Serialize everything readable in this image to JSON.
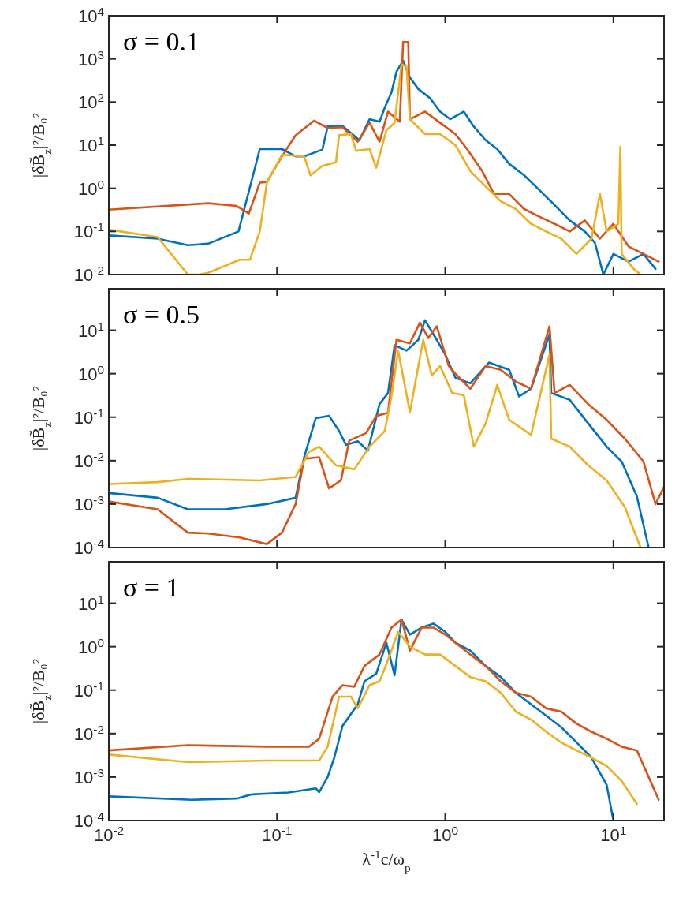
{
  "chart_data": [
    {
      "type": "line",
      "log": "xy",
      "ylabel": "|δB̃$_{z}$|²/B₀²",
      "annotations": [
        "σ = 0.1"
      ],
      "tick_labels": "y",
      "xlim": [
        0.01,
        20
      ],
      "ylim": [
        0.01,
        10000
      ],
      "xticks": [
        {
          "value": 0.01,
          "label": null
        },
        {
          "value": 0.1,
          "label": null
        },
        {
          "value": 1,
          "label": null
        },
        {
          "value": 10,
          "label": null
        }
      ],
      "yticks": [
        {
          "value": 0.01,
          "label": "10$^{-2}$"
        },
        {
          "value": 0.1,
          "label": "10$^{-1}$"
        },
        {
          "value": 1,
          "label": "10$^{0}$"
        },
        {
          "value": 10,
          "label": "10$^{1}$"
        },
        {
          "value": 100,
          "label": "10$^{2}$"
        },
        {
          "value": 1000,
          "label": "10$^{3}$"
        },
        {
          "value": 10000,
          "label": "10$^{4}$"
        }
      ],
      "series": [
        {
          "color": "#0072bd",
          "x": [
            0.01,
            0.0195,
            0.0295,
            0.039,
            0.059,
            0.079,
            0.107,
            0.129,
            0.145,
            0.186,
            0.2,
            0.245,
            0.309,
            0.355,
            0.407,
            0.437,
            0.479,
            0.513,
            0.562,
            0.617,
            0.692,
            0.813,
            0.933,
            1.07,
            1.29,
            1.48,
            1.74,
            2.04,
            2.4,
            2.95,
            3.63,
            4.47,
            5.5,
            6.76,
            7.76,
            8.71,
            10,
            12.3,
            15.1,
            17.8
          ],
          "values": [
            0.081,
            0.068,
            0.048,
            0.052,
            0.1,
            8.1,
            8.1,
            5.5,
            5.5,
            7.9,
            27,
            28,
            13,
            40,
            35,
            74,
            166,
            500,
            912,
            372,
            200,
            123,
            60,
            40,
            60,
            27,
            13,
            8.1,
            3.7,
            2.0,
            0.91,
            0.41,
            0.18,
            0.1,
            0.055,
            0.01,
            0.03,
            0.02,
            0.03,
            0.0135
          ]
        },
        {
          "color": "#d95319",
          "x": [
            0.01,
            0.039,
            0.0575,
            0.068,
            0.079,
            0.087,
            0.107,
            0.129,
            0.166,
            0.2,
            0.245,
            0.302,
            0.355,
            0.407,
            0.457,
            0.537,
            0.562,
            0.603,
            0.617,
            0.759,
            0.933,
            1.15,
            1.35,
            1.66,
            1.95,
            2.4,
            2.95,
            3.63,
            4.47,
            5.5,
            6.76,
            8.32,
            10,
            12.3,
            15.1,
            18.6
          ],
          "values": [
            0.32,
            0.45,
            0.39,
            0.26,
            1.35,
            1.4,
            5.5,
            17,
            37,
            25,
            26,
            12,
            33,
            12,
            60,
            35,
            2450,
            2450,
            40,
            60,
            33,
            18,
            8.1,
            2.5,
            0.74,
            0.74,
            0.33,
            0.22,
            0.15,
            0.1,
            0.18,
            0.068,
            0.15,
            0.045,
            0.03,
            0.02
          ]
        },
        {
          "color": "#edb120",
          "x": [
            0.01,
            0.0195,
            0.0295,
            0.0347,
            0.039,
            0.06,
            0.069,
            0.079,
            0.087,
            0.107,
            0.145,
            0.158,
            0.186,
            0.224,
            0.234,
            0.275,
            0.295,
            0.355,
            0.389,
            0.447,
            0.5,
            0.55,
            0.589,
            0.617,
            0.759,
            0.933,
            1.15,
            1.41,
            1.74,
            2.14,
            2.63,
            3.24,
            3.98,
            4.9,
            6.03,
            7.41,
            8.32,
            9.12,
            10.7,
            11,
            11.2,
            13.2,
            14.5
          ],
          "values": [
            0.11,
            0.074,
            0.01,
            0.01,
            0.011,
            0.022,
            0.022,
            0.1,
            1.35,
            6.0,
            5.5,
            2.0,
            3.3,
            4.0,
            17,
            18,
            7.4,
            8.1,
            3.0,
            22,
            33,
            740,
            660,
            40,
            18,
            18,
            10,
            2.5,
            1.1,
            0.5,
            0.33,
            0.15,
            0.1,
            0.068,
            0.03,
            0.068,
            0.74,
            0.1,
            0.15,
            9.1,
            0.03,
            0.0135,
            0.01
          ]
        }
      ]
    },
    {
      "type": "line",
      "log": "xy",
      "ylabel": "|δB̃$_{z}$|²/B₀²",
      "annotations": [
        "σ = 0.5"
      ],
      "tick_labels": "y",
      "xlim": [
        0.01,
        20
      ],
      "ylim": [
        0.0001,
        90
      ],
      "xticks": [
        {
          "value": 0.01,
          "label": null
        },
        {
          "value": 0.1,
          "label": null
        },
        {
          "value": 1,
          "label": null
        },
        {
          "value": 10,
          "label": null
        }
      ],
      "yticks": [
        {
          "value": 0.0001,
          "label": "10$^{-4}$"
        },
        {
          "value": 0.001,
          "label": "10$^{-3}$"
        },
        {
          "value": 0.01,
          "label": "10$^{-2}$"
        },
        {
          "value": 0.1,
          "label": "10$^{-1}$"
        },
        {
          "value": 1,
          "label": "10$^{0}$"
        },
        {
          "value": 10,
          "label": "10$^{1}$"
        }
      ],
      "series": [
        {
          "color": "#0072bd",
          "x": [
            0.01,
            0.0195,
            0.0295,
            0.049,
            0.087,
            0.129,
            0.145,
            0.17,
            0.204,
            0.234,
            0.257,
            0.302,
            0.347,
            0.407,
            0.457,
            0.5,
            0.589,
            0.692,
            0.759,
            0.891,
            1,
            1.15,
            1.41,
            1.82,
            2.4,
            2.75,
            3.24,
            4.17,
            4.27,
            5.5,
            7.08,
            9.12,
            11.2,
            13.8,
            16.2
          ],
          "values": [
            0.0018,
            0.0014,
            0.00076,
            0.00076,
            0.001,
            0.0014,
            0.012,
            0.095,
            0.107,
            0.048,
            0.023,
            0.028,
            0.017,
            0.2,
            0.36,
            4.5,
            3.4,
            6.0,
            17,
            6.0,
            2.75,
            0.81,
            0.6,
            1.8,
            1.23,
            0.3,
            0.45,
            8.1,
            0.36,
            0.25,
            0.072,
            0.021,
            0.0095,
            0.0015,
            0.0001
          ]
        },
        {
          "color": "#d95319",
          "x": [
            0.01,
            0.0195,
            0.0295,
            0.039,
            0.06,
            0.087,
            0.107,
            0.129,
            0.145,
            0.178,
            0.204,
            0.24,
            0.269,
            0.339,
            0.389,
            0.457,
            0.513,
            0.617,
            0.708,
            0.794,
            0.891,
            1.05,
            1.15,
            1.41,
            1.74,
            2.14,
            2.63,
            3.24,
            4.17,
            4.47,
            5.5,
            7.08,
            9.12,
            11.7,
            15.1,
            17.8,
            20
          ],
          "values": [
            0.00115,
            0.00076,
            0.00022,
            0.00021,
            0.00017,
            0.00012,
            0.00022,
            0.001,
            0.011,
            0.012,
            0.0023,
            0.0035,
            0.029,
            0.043,
            0.107,
            0.126,
            6.0,
            5.0,
            15,
            6.6,
            12.3,
            1.5,
            1.0,
            0.45,
            1.5,
            1.23,
            0.66,
            0.45,
            12.3,
            0.36,
            0.55,
            0.2,
            0.087,
            0.032,
            0.0095,
            0.001,
            0.0025
          ]
        },
        {
          "color": "#edb120",
          "x": [
            0.01,
            0.0195,
            0.0295,
            0.079,
            0.129,
            0.155,
            0.178,
            0.224,
            0.288,
            0.355,
            0.437,
            0.479,
            0.525,
            0.617,
            0.692,
            0.741,
            0.832,
            0.933,
            1.1,
            1.29,
            1.48,
            1.74,
            2.04,
            2.4,
            3.24,
            4.17,
            4.27,
            5.5,
            7.08,
            9.12,
            11.7,
            14.5
          ],
          "values": [
            0.0029,
            0.0032,
            0.0038,
            0.0035,
            0.0042,
            0.016,
            0.021,
            0.0078,
            0.0063,
            0.021,
            0.048,
            0.3,
            3.4,
            0.13,
            1.5,
            6.0,
            0.91,
            1.5,
            0.36,
            0.32,
            0.021,
            0.072,
            0.55,
            0.087,
            0.039,
            2.75,
            0.032,
            0.021,
            0.0078,
            0.0035,
            0.00085,
            0.0001
          ]
        }
      ]
    },
    {
      "type": "line",
      "log": "xy",
      "ylabel": "|δB̃$_{z}$|²/B₀²",
      "xlabel": "λ$^{-1}$c/ω$_{p}$",
      "annotations": [
        "σ = 1"
      ],
      "xlim": [
        0.01,
        20
      ],
      "ylim": [
        0.0001,
        90
      ],
      "xticks": [
        {
          "value": 0.01,
          "label": "10$^{-2}$"
        },
        {
          "value": 0.1,
          "label": "10$^{-1}$"
        },
        {
          "value": 1,
          "label": "10$^{0}$"
        },
        {
          "value": 10,
          "label": "10$^{1}$"
        }
      ],
      "yticks": [
        {
          "value": 0.0001,
          "label": "10$^{-4}$"
        },
        {
          "value": 0.001,
          "label": "10$^{-3}$"
        },
        {
          "value": 0.01,
          "label": "10$^{-2}$"
        },
        {
          "value": 0.1,
          "label": "10$^{-1}$"
        },
        {
          "value": 1,
          "label": "10$^{0}$"
        },
        {
          "value": 10,
          "label": "10$^{1}$"
        }
      ],
      "series": [
        {
          "color": "#0072bd",
          "x": [
            0.01,
            0.031,
            0.0575,
            0.071,
            0.117,
            0.17,
            0.178,
            0.2,
            0.219,
            0.245,
            0.302,
            0.331,
            0.389,
            0.447,
            0.5,
            0.55,
            0.617,
            0.724,
            0.851,
            1,
            1.15,
            1.41,
            1.74,
            2.14,
            2.63,
            3.24,
            3.98,
            4.9,
            6.03,
            7.41,
            9.12,
            10
          ],
          "values": [
            0.00036,
            0.0003,
            0.00032,
            0.0004,
            0.00044,
            0.00055,
            0.00045,
            0.001,
            0.0028,
            0.015,
            0.047,
            0.16,
            0.24,
            1.23,
            0.22,
            4.2,
            1.9,
            2.75,
            3.4,
            2.2,
            1.23,
            0.81,
            0.36,
            0.2,
            0.087,
            0.047,
            0.026,
            0.014,
            0.0063,
            0.0028,
            0.00066,
            0.0001
          ]
        },
        {
          "color": "#d95319",
          "x": [
            0.01,
            0.0295,
            0.087,
            0.155,
            0.178,
            0.214,
            0.245,
            0.288,
            0.331,
            0.407,
            0.479,
            0.55,
            0.617,
            0.724,
            0.851,
            1,
            1.15,
            1.41,
            1.74,
            2.14,
            2.63,
            3.24,
            3.98,
            4.9,
            6.03,
            7.41,
            9.12,
            11.2,
            13.8,
            17,
            18.6
          ],
          "values": [
            0.0041,
            0.0054,
            0.005,
            0.005,
            0.0076,
            0.071,
            0.13,
            0.12,
            0.36,
            0.66,
            2.75,
            4.2,
            0.81,
            2.75,
            2.75,
            1.9,
            1.23,
            0.66,
            0.36,
            0.16,
            0.087,
            0.071,
            0.038,
            0.032,
            0.017,
            0.011,
            0.0076,
            0.005,
            0.0041,
            0.00066,
            0.0003
          ]
        },
        {
          "color": "#edb120",
          "x": [
            0.01,
            0.0295,
            0.087,
            0.178,
            0.2,
            0.234,
            0.275,
            0.302,
            0.355,
            0.407,
            0.457,
            0.525,
            0.617,
            0.759,
            0.933,
            1.15,
            1.41,
            1.74,
            2.14,
            2.63,
            3.24,
            3.98,
            4.9,
            6.03,
            7.41,
            9.12,
            11.2,
            13.8
          ],
          "values": [
            0.0033,
            0.0022,
            0.0024,
            0.0024,
            0.005,
            0.071,
            0.071,
            0.038,
            0.13,
            0.16,
            0.49,
            2.2,
            1.0,
            0.66,
            0.66,
            0.36,
            0.2,
            0.16,
            0.087,
            0.032,
            0.021,
            0.011,
            0.0062,
            0.0041,
            0.0028,
            0.0018,
            0.00081,
            0.00024
          ]
        }
      ]
    }
  ]
}
